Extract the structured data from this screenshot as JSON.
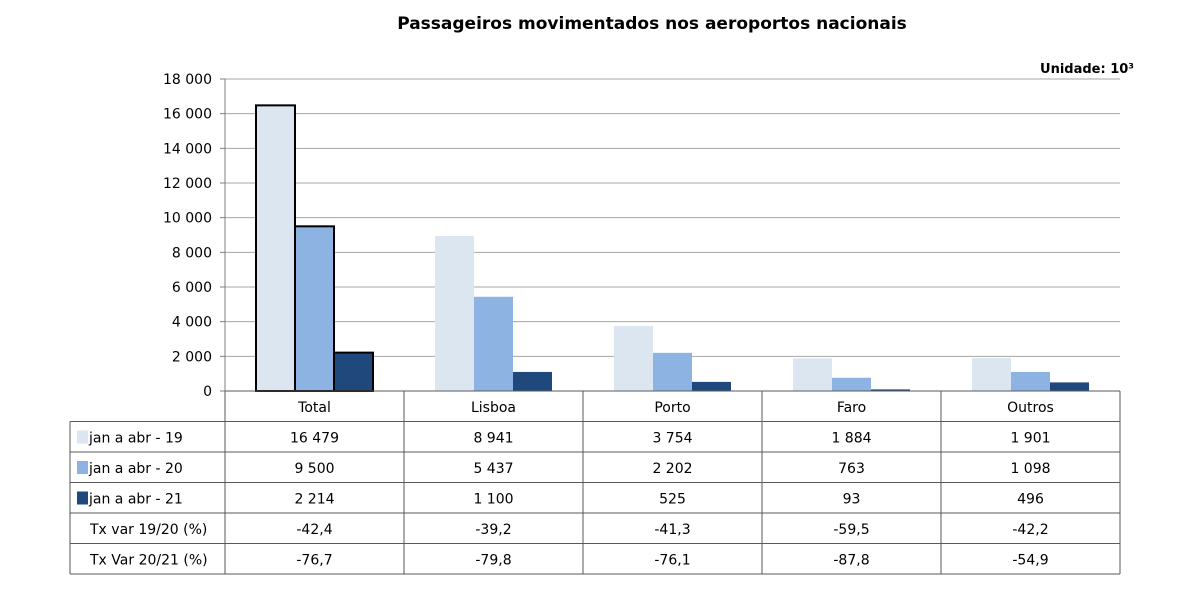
{
  "chart_data": {
    "type": "bar",
    "title": "Passageiros movimentados nos aeroportos nacionais",
    "unit_label": "Unidade: 10³",
    "categories": [
      "Total",
      "Lisboa",
      "Porto",
      "Faro",
      "Outros"
    ],
    "ylim": [
      0,
      18000
    ],
    "yticks": [
      0,
      2000,
      4000,
      6000,
      8000,
      10000,
      12000,
      14000,
      16000,
      18000
    ],
    "ytick_labels": [
      "0",
      "2 000",
      "4 000",
      "6 000",
      "8 000",
      "10 000",
      "12 000",
      "14 000",
      "16 000",
      "18 000"
    ],
    "grid": true,
    "legend": "table-rows",
    "series": [
      {
        "name": "jan a abr - 19",
        "color": "#dce6f1",
        "values": [
          16479,
          8941,
          3754,
          1884,
          1901
        ],
        "labels": [
          "16 479",
          "8 941",
          "3 754",
          "1 884",
          "1 901"
        ]
      },
      {
        "name": "jan a abr - 20",
        "color": "#8db3e2",
        "values": [
          9500,
          5437,
          2202,
          763,
          1098
        ],
        "labels": [
          "9 500",
          "5 437",
          "2 202",
          "763",
          "1 098"
        ]
      },
      {
        "name": "jan a abr - 21",
        "color": "#1f497d",
        "values": [
          2214,
          1100,
          525,
          93,
          496
        ],
        "labels": [
          "2 214",
          "1 100",
          "525",
          "93",
          "496"
        ]
      }
    ],
    "extra_rows": [
      {
        "name": "Tx var 19/20 (%)",
        "values": [
          "-42,4",
          "-39,2",
          "-41,3",
          "-59,5",
          "-42,2"
        ]
      },
      {
        "name": "Tx Var 20/21 (%)",
        "values": [
          "-76,7",
          "-79,8",
          "-76,1",
          "-87,8",
          "-54,9"
        ]
      }
    ],
    "highlighted_category": "Total"
  }
}
